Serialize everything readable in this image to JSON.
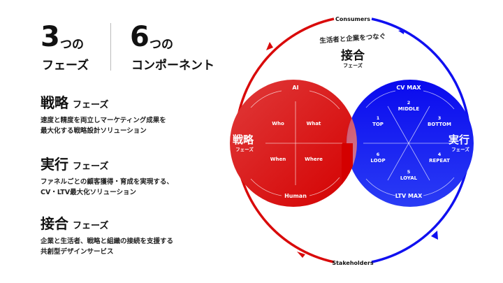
{
  "headline": {
    "left": {
      "number": "3",
      "suffix": "つの",
      "label": "フェーズ"
    },
    "right": {
      "number": "6",
      "suffix": "つの",
      "label": "コンポーネント"
    }
  },
  "phases": [
    {
      "title": "戦略",
      "sub": "フェーズ",
      "desc1": "速度と精度を両立しマーケティング成果を",
      "desc2": "最大化する戦略設計ソリューション"
    },
    {
      "title": "実行",
      "sub": "フェーズ",
      "desc1": "ファネルごとの顧客獲得・育成を実現する、",
      "desc2": "CV・LTV最大化ソリューション"
    },
    {
      "title": "接合",
      "sub": "フェーズ",
      "desc1": "企業と生活者、戦略と組織の接続を支援する",
      "desc2": "共創型デザインサービス"
    }
  ],
  "diagram": {
    "top_label": "Consumers",
    "bottom_label": "Stakeholders",
    "join": {
      "caption": "生活者と企業をつなぐ",
      "title": "接合",
      "sub": "フェーズ"
    },
    "strategy": {
      "title": "戦略",
      "sub": "フェーズ",
      "top": "AI",
      "bottom": "Human",
      "quadrants": [
        "Who",
        "What",
        "When",
        "Where"
      ]
    },
    "execution": {
      "title": "実行",
      "sub": "フェーズ",
      "top": "CV MAX",
      "bottom": "LTV MAX",
      "steps": [
        {
          "num": "1",
          "label": "TOP"
        },
        {
          "num": "2",
          "label": "MIDDLE"
        },
        {
          "num": "3",
          "label": "BOTTOM"
        },
        {
          "num": "4",
          "label": "REPEAT"
        },
        {
          "num": "5",
          "label": "LOYAL"
        },
        {
          "num": "6",
          "label": "LOOP"
        }
      ]
    }
  },
  "colors": {
    "red": "#d90a0a",
    "blue": "#1010f0",
    "overlap": "#b98ab0"
  }
}
